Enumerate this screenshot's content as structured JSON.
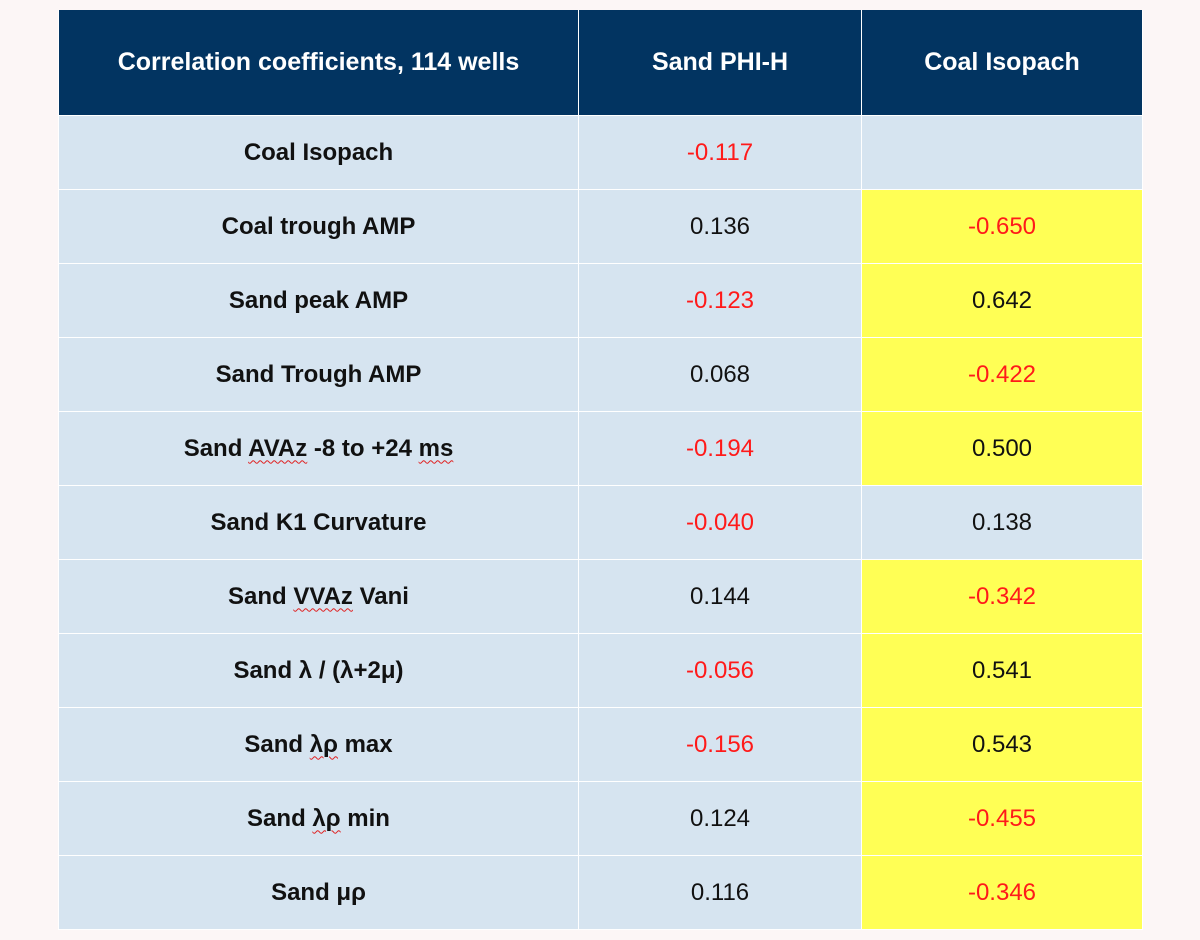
{
  "table": {
    "headers": [
      "Correlation coefficients, 114 wells",
      "Sand PHI-H",
      "Coal Isopach"
    ],
    "rows": [
      {
        "label": "Coal Isopach",
        "phi_h": "-0.117",
        "coal_isopach": ""
      },
      {
        "label": "Coal trough AMP",
        "phi_h": "0.136",
        "coal_isopach": "-0.650"
      },
      {
        "label": "Sand peak AMP",
        "phi_h": "-0.123",
        "coal_isopach": "0.642"
      },
      {
        "label": "Sand Trough AMP",
        "phi_h": "0.068",
        "coal_isopach": "-0.422"
      },
      {
        "label_pre": "Sand ",
        "label_sq1": "AVAz",
        "label_mid": " -8 to +24 ",
        "label_sq2": "ms",
        "phi_h": "-0.194",
        "coal_isopach": "0.500"
      },
      {
        "label": "Sand K1 Curvature",
        "phi_h": "-0.040",
        "coal_isopach": "0.138"
      },
      {
        "label_pre": "Sand ",
        "label_sq1": "VVAz",
        "label_mid": " Vani",
        "phi_h": "0.144",
        "coal_isopach": "-0.342"
      },
      {
        "label": "Sand λ / (λ+2μ)",
        "phi_h": "-0.056",
        "coal_isopach": "0.541"
      },
      {
        "label_pre": "Sand ",
        "label_sq1": "λρ",
        "label_mid": " max",
        "phi_h": "-0.156",
        "coal_isopach": "0.543"
      },
      {
        "label_pre": "Sand ",
        "label_sq1": "λρ",
        "label_mid": " min",
        "phi_h": "0.124",
        "coal_isopach": "-0.455"
      },
      {
        "label": "Sand μρ",
        "phi_h": "0.116",
        "coal_isopach": "-0.346"
      }
    ]
  },
  "colors": {
    "header_bg": "#023461",
    "cell_bg": "#d6e4f0",
    "highlight": "#ffff55",
    "negative_text": "#ff1a1a"
  }
}
